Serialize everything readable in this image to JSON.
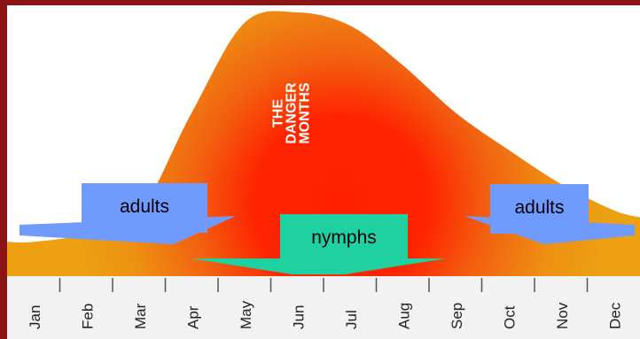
{
  "chart_data": {
    "type": "area",
    "title": "",
    "xlabel": "",
    "ylabel": "",
    "categories": [
      "Jan",
      "Feb",
      "Mar",
      "Apr",
      "May",
      "Jun",
      "Jul",
      "Aug",
      "Sep",
      "Oct",
      "Nov",
      "Dec"
    ],
    "series": [
      {
        "values": [
          0.13,
          0.16,
          0.24,
          0.62,
          0.96,
          1.0,
          0.95,
          0.8,
          0.62,
          0.48,
          0.35,
          0.25
        ]
      }
    ],
    "ylim": [
      0,
      1
    ],
    "grid": false,
    "legend": "none",
    "peak_label": [
      "THE",
      "DANGER",
      "MONTHS"
    ],
    "arrows": [
      {
        "label": "adults",
        "from": "Jan",
        "to": "May"
      },
      {
        "label": "nymphs",
        "from": "Apr",
        "to": "Sep"
      },
      {
        "label": "adults",
        "from": "Sep",
        "to": "Dec"
      }
    ],
    "colors": {
      "frame": "#8b1414",
      "background": "#ffffff",
      "curve_low": "#f0a012",
      "curve_high": "#ff2a00",
      "adults_arrow": "#6f9bff",
      "nymphs_arrow": "#1fd0a0",
      "axis_strip": "#f2f2f2"
    }
  }
}
